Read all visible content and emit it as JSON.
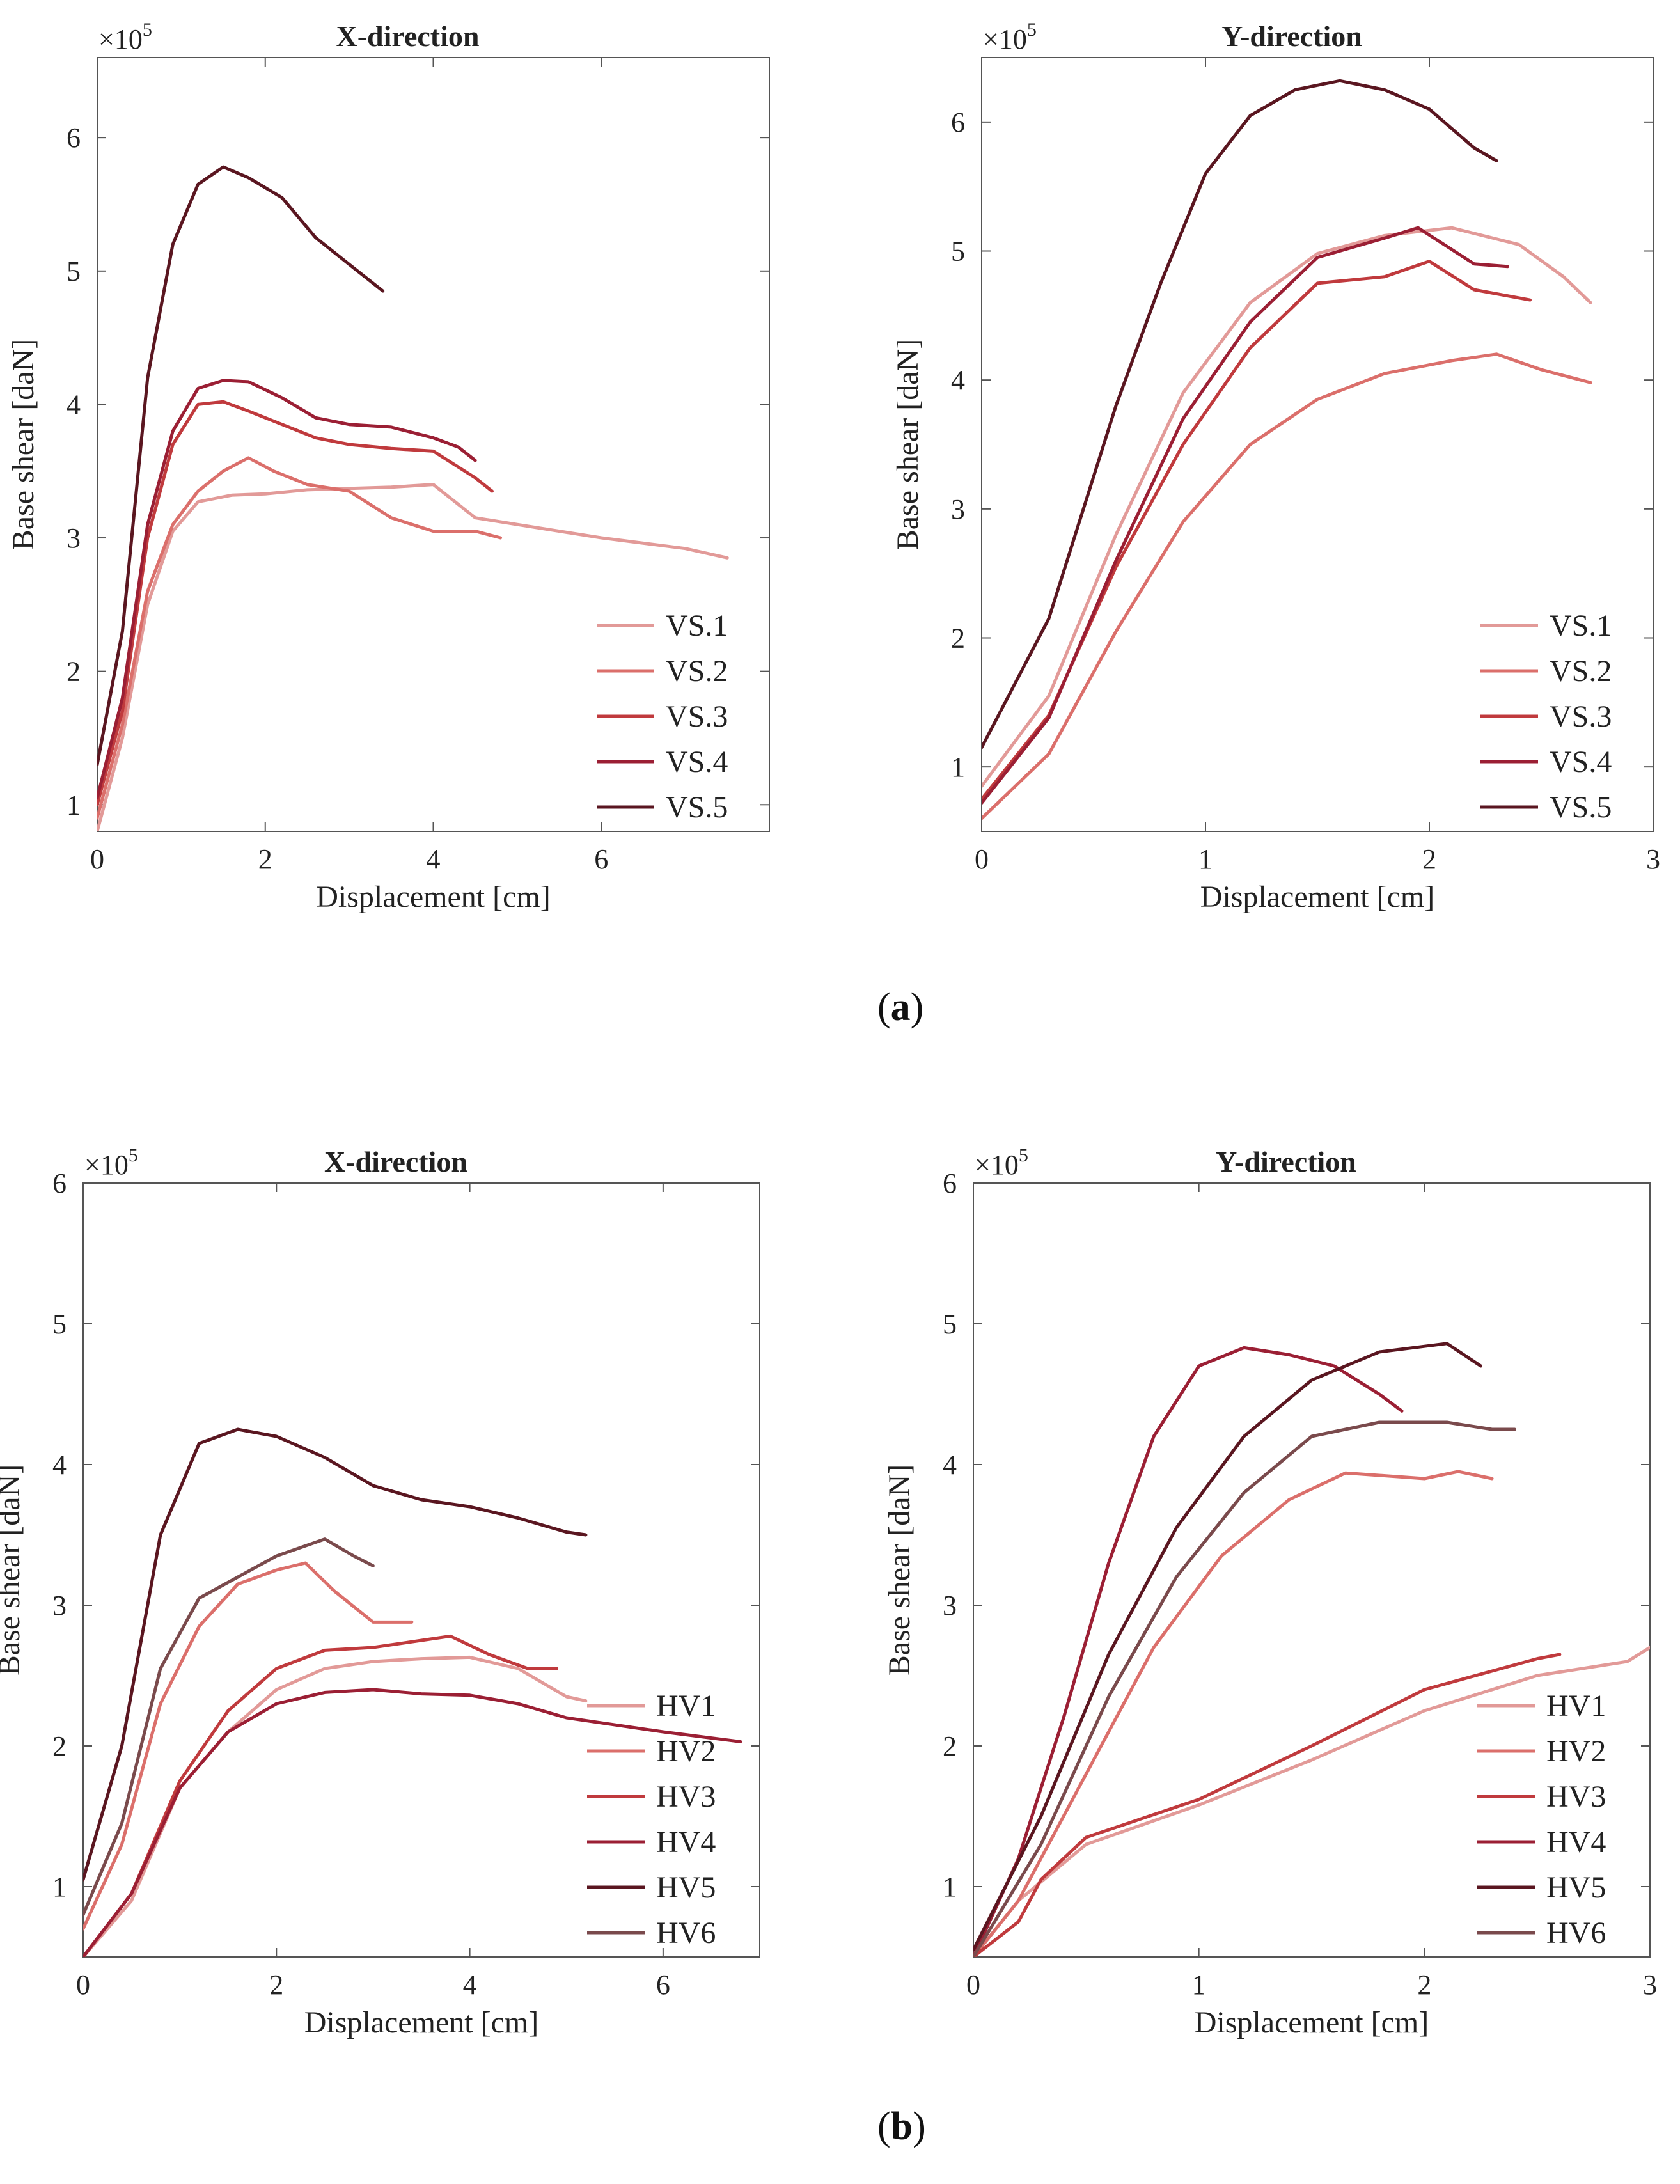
{
  "figure": {
    "panels": [
      {
        "open": "(",
        "letter": "a",
        "close": ")"
      },
      {
        "open": "(",
        "letter": "b",
        "close": ")"
      }
    ]
  },
  "colors": {
    "s1": "#e29a98",
    "s2": "#db6f6b",
    "s3": "#c03a3d",
    "s4": "#9b1f34",
    "s5": "#5a1620",
    "s6": "#7a4a4c"
  },
  "chart_data": [
    {
      "type": "line",
      "title": "X-direction",
      "xlabel": "Displacement [cm]",
      "ylabel": "Base shear [daN]",
      "y_exponent_label": "×10",
      "y_exponent_power": "5",
      "xlim": [
        0,
        8
      ],
      "ylim": [
        0.8,
        6.6
      ],
      "xticks": [
        0,
        2,
        4,
        6
      ],
      "yticks": [
        1,
        2,
        3,
        4,
        5,
        6
      ],
      "legend": "bottom-right",
      "series": [
        {
          "name": "VS.1",
          "color": "s1",
          "x": [
            0,
            0.3,
            0.6,
            0.9,
            1.2,
            1.6,
            2.0,
            2.5,
            3.0,
            3.5,
            4.0,
            4.5,
            5.0,
            6.0,
            7.0,
            7.5
          ],
          "y": [
            0.8,
            1.5,
            2.5,
            3.05,
            3.27,
            3.32,
            3.33,
            3.36,
            3.37,
            3.38,
            3.4,
            3.15,
            3.1,
            3.0,
            2.92,
            2.85
          ]
        },
        {
          "name": "VS.2",
          "color": "s2",
          "x": [
            0,
            0.3,
            0.6,
            0.9,
            1.2,
            1.5,
            1.8,
            2.1,
            2.5,
            3.0,
            3.5,
            4.0,
            4.5,
            4.8
          ],
          "y": [
            0.9,
            1.6,
            2.6,
            3.1,
            3.35,
            3.5,
            3.6,
            3.5,
            3.4,
            3.35,
            3.15,
            3.05,
            3.05,
            3.0
          ]
        },
        {
          "name": "VS.3",
          "color": "s3",
          "x": [
            0,
            0.3,
            0.6,
            0.9,
            1.2,
            1.5,
            1.8,
            2.2,
            2.6,
            3.0,
            3.5,
            4.0,
            4.5,
            4.7
          ],
          "y": [
            1.0,
            1.7,
            3.0,
            3.7,
            4.0,
            4.02,
            3.95,
            3.85,
            3.75,
            3.7,
            3.67,
            3.65,
            3.45,
            3.35
          ]
        },
        {
          "name": "VS.4",
          "color": "s4",
          "x": [
            0,
            0.3,
            0.6,
            0.9,
            1.2,
            1.5,
            1.8,
            2.2,
            2.6,
            3.0,
            3.5,
            4.0,
            4.3,
            4.5
          ],
          "y": [
            1.05,
            1.8,
            3.1,
            3.8,
            4.12,
            4.18,
            4.17,
            4.05,
            3.9,
            3.85,
            3.83,
            3.75,
            3.68,
            3.58
          ]
        },
        {
          "name": "VS.5",
          "color": "s5",
          "x": [
            0,
            0.3,
            0.6,
            0.9,
            1.2,
            1.5,
            1.8,
            2.2,
            2.6,
            3.0,
            3.4
          ],
          "y": [
            1.3,
            2.3,
            4.2,
            5.2,
            5.65,
            5.78,
            5.7,
            5.55,
            5.25,
            5.05,
            4.85
          ]
        }
      ]
    },
    {
      "type": "line",
      "title": "Y-direction",
      "xlabel": "Displacement [cm]",
      "ylabel": "Base shear [daN]",
      "y_exponent_label": "×10",
      "y_exponent_power": "5",
      "xlim": [
        0,
        3
      ],
      "ylim": [
        0.5,
        6.5
      ],
      "xticks": [
        0,
        1,
        2,
        3
      ],
      "yticks": [
        1,
        2,
        3,
        4,
        5,
        6
      ],
      "legend": "bottom-right",
      "series": [
        {
          "name": "VS.1",
          "color": "s1",
          "x": [
            0,
            0.3,
            0.6,
            0.9,
            1.2,
            1.5,
            1.8,
            2.1,
            2.4,
            2.6,
            2.72
          ],
          "y": [
            0.85,
            1.55,
            2.8,
            3.9,
            4.6,
            4.98,
            5.12,
            5.18,
            5.05,
            4.8,
            4.6
          ]
        },
        {
          "name": "VS.2",
          "color": "s2",
          "x": [
            0,
            0.3,
            0.6,
            0.9,
            1.2,
            1.5,
            1.8,
            2.1,
            2.3,
            2.5,
            2.72
          ],
          "y": [
            0.6,
            1.1,
            2.05,
            2.9,
            3.5,
            3.85,
            4.05,
            4.15,
            4.2,
            4.08,
            3.98
          ]
        },
        {
          "name": "VS.3",
          "color": "s3",
          "x": [
            0,
            0.3,
            0.6,
            0.9,
            1.2,
            1.5,
            1.8,
            2.0,
            2.2,
            2.45
          ],
          "y": [
            0.75,
            1.4,
            2.55,
            3.5,
            4.25,
            4.75,
            4.8,
            4.92,
            4.7,
            4.62
          ]
        },
        {
          "name": "VS.4",
          "color": "s4",
          "x": [
            0,
            0.3,
            0.6,
            0.9,
            1.2,
            1.5,
            1.8,
            1.95,
            2.2,
            2.35
          ],
          "y": [
            0.72,
            1.38,
            2.6,
            3.7,
            4.45,
            4.95,
            5.1,
            5.18,
            4.9,
            4.88
          ]
        },
        {
          "name": "VS.5",
          "color": "s5",
          "x": [
            0,
            0.3,
            0.6,
            0.8,
            1.0,
            1.2,
            1.4,
            1.6,
            1.8,
            2.0,
            2.2,
            2.3
          ],
          "y": [
            1.15,
            2.15,
            3.8,
            4.75,
            5.6,
            6.05,
            6.25,
            6.32,
            6.25,
            6.1,
            5.8,
            5.7
          ]
        }
      ]
    },
    {
      "type": "line",
      "title": "X-direction",
      "xlabel": "Displacement [cm]",
      "ylabel": "Base shear [daN]",
      "y_exponent_label": "×10",
      "y_exponent_power": "5",
      "xlim": [
        0,
        7
      ],
      "ylim": [
        0.5,
        6
      ],
      "xticks": [
        0,
        2,
        4,
        6
      ],
      "yticks": [
        1,
        2,
        3,
        4,
        5,
        6
      ],
      "legend": "bottom-right",
      "series": [
        {
          "name": "HV1",
          "color": "s1",
          "x": [
            0,
            0.5,
            1.0,
            1.5,
            2.0,
            2.5,
            3.0,
            3.5,
            4.0,
            4.5,
            5.0,
            5.2
          ],
          "y": [
            0.5,
            0.9,
            1.7,
            2.1,
            2.4,
            2.55,
            2.6,
            2.62,
            2.63,
            2.55,
            2.35,
            2.32
          ]
        },
        {
          "name": "HV2",
          "color": "s2",
          "x": [
            0,
            0.4,
            0.8,
            1.2,
            1.6,
            2.0,
            2.3,
            2.6,
            3.0,
            3.4
          ],
          "y": [
            0.7,
            1.3,
            2.3,
            2.85,
            3.15,
            3.25,
            3.3,
            3.1,
            2.88,
            2.88
          ]
        },
        {
          "name": "HV3",
          "color": "s3",
          "x": [
            0,
            0.5,
            1.0,
            1.5,
            2.0,
            2.5,
            3.0,
            3.5,
            3.8,
            4.2,
            4.6,
            4.9
          ],
          "y": [
            0.5,
            0.95,
            1.75,
            2.25,
            2.55,
            2.68,
            2.7,
            2.75,
            2.78,
            2.65,
            2.55,
            2.55
          ]
        },
        {
          "name": "HV4",
          "color": "s4",
          "x": [
            0,
            0.5,
            1.0,
            1.5,
            2.0,
            2.5,
            3.0,
            3.5,
            4.0,
            4.5,
            5.0,
            6.0,
            6.8
          ],
          "y": [
            0.5,
            0.95,
            1.7,
            2.1,
            2.3,
            2.38,
            2.4,
            2.37,
            2.36,
            2.3,
            2.2,
            2.1,
            2.03
          ]
        },
        {
          "name": "HV5",
          "color": "s5",
          "x": [
            0,
            0.4,
            0.8,
            1.2,
            1.6,
            2.0,
            2.5,
            3.0,
            3.5,
            4.0,
            4.5,
            5.0,
            5.2
          ],
          "y": [
            1.05,
            2.0,
            3.5,
            4.15,
            4.25,
            4.2,
            4.05,
            3.85,
            3.75,
            3.7,
            3.62,
            3.52,
            3.5
          ]
        },
        {
          "name": "HV6",
          "color": "s6",
          "x": [
            0,
            0.4,
            0.8,
            1.2,
            1.6,
            2.0,
            2.5,
            2.8,
            3.0
          ],
          "y": [
            0.8,
            1.45,
            2.55,
            3.05,
            3.2,
            3.35,
            3.47,
            3.35,
            3.28
          ]
        }
      ]
    },
    {
      "type": "line",
      "title": "Y-direction",
      "xlabel": "Displacement [cm]",
      "ylabel": "Base shear [daN]",
      "y_exponent_label": "×10",
      "y_exponent_power": "5",
      "xlim": [
        0,
        3
      ],
      "ylim": [
        0.5,
        6
      ],
      "xticks": [
        0,
        1,
        2,
        3
      ],
      "yticks": [
        1,
        2,
        3,
        4,
        5,
        6
      ],
      "legend": "bottom-right",
      "series": [
        {
          "name": "HV1",
          "color": "s1",
          "x": [
            0,
            0.2,
            0.5,
            1.0,
            1.5,
            2.0,
            2.5,
            2.9,
            3.0
          ],
          "y": [
            0.5,
            0.9,
            1.3,
            1.58,
            1.9,
            2.25,
            2.5,
            2.6,
            2.7
          ]
        },
        {
          "name": "HV2",
          "color": "s2",
          "x": [
            0,
            0.2,
            0.5,
            0.8,
            1.1,
            1.4,
            1.65,
            2.0,
            2.15,
            2.3
          ],
          "y": [
            0.5,
            0.9,
            1.8,
            2.7,
            3.35,
            3.75,
            3.94,
            3.9,
            3.95,
            3.9
          ]
        },
        {
          "name": "HV3",
          "color": "s3",
          "x": [
            0,
            0.2,
            0.3,
            0.5,
            1.0,
            1.5,
            2.0,
            2.5,
            2.6
          ],
          "y": [
            0.5,
            0.75,
            1.05,
            1.35,
            1.62,
            2.0,
            2.4,
            2.62,
            2.65
          ]
        },
        {
          "name": "HV4",
          "color": "s4",
          "x": [
            0,
            0.2,
            0.4,
            0.6,
            0.8,
            1.0,
            1.2,
            1.4,
            1.6,
            1.8,
            1.9
          ],
          "y": [
            0.5,
            1.2,
            2.2,
            3.3,
            4.2,
            4.7,
            4.83,
            4.78,
            4.7,
            4.5,
            4.38
          ]
        },
        {
          "name": "HV5",
          "color": "s5",
          "x": [
            0,
            0.3,
            0.6,
            0.9,
            1.2,
            1.5,
            1.8,
            2.1,
            2.25
          ],
          "y": [
            0.55,
            1.5,
            2.65,
            3.55,
            4.2,
            4.6,
            4.8,
            4.86,
            4.7
          ]
        },
        {
          "name": "HV6",
          "color": "s6",
          "x": [
            0,
            0.3,
            0.6,
            0.9,
            1.2,
            1.5,
            1.8,
            2.1,
            2.3,
            2.4
          ],
          "y": [
            0.5,
            1.3,
            2.35,
            3.2,
            3.8,
            4.2,
            4.3,
            4.3,
            4.25,
            4.25
          ]
        }
      ]
    }
  ]
}
